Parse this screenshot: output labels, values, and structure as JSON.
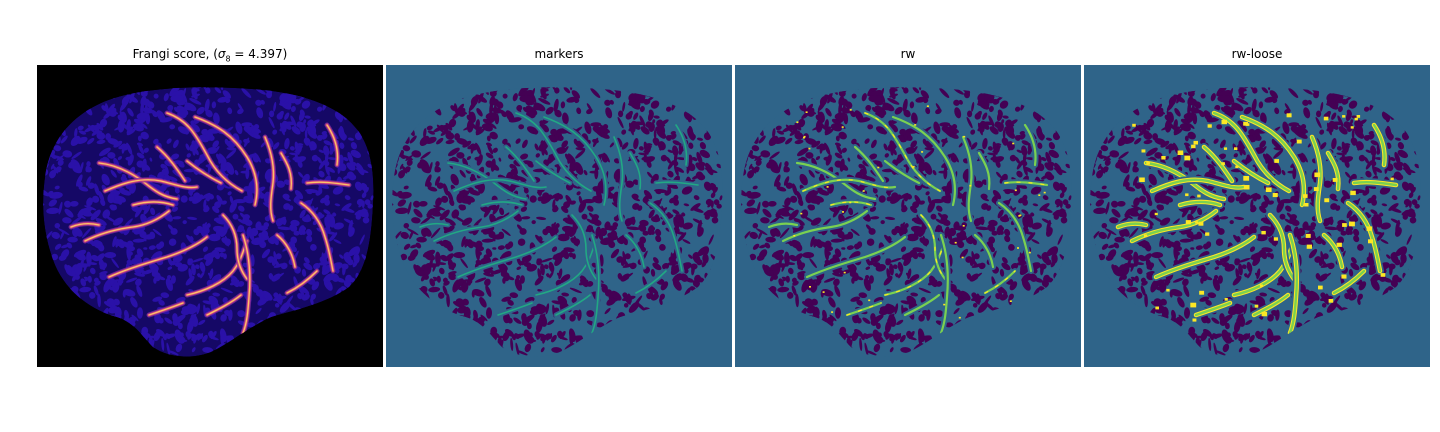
{
  "figure": {
    "panels": [
      {
        "title_prefix": "Frangi score, (",
        "title_sigma": "σ",
        "title_sub": "8",
        "title_suffix": " = 4.397)",
        "colormap": "magma",
        "colors": {
          "background": "#000000",
          "texture": "#2a11a8",
          "texture_dark": "#150866",
          "vessel_low": "#7d2b9c",
          "vessel_mid": "#d0457a",
          "vessel_high": "#fbc26a"
        }
      },
      {
        "title": "markers",
        "colormap": "viridis",
        "colors": {
          "background": "#2f6489",
          "texture": "#440154",
          "vessel": "#22a884"
        }
      },
      {
        "title": "rw",
        "colormap": "viridis",
        "colors": {
          "background": "#2f6489",
          "texture": "#440154",
          "vessel": "#7ad151",
          "vessel_hi": "#fde725"
        }
      },
      {
        "title": "rw-loose",
        "colormap": "viridis",
        "colors": {
          "background": "#2f6489",
          "texture": "#440154",
          "vessel": "#7ad151",
          "vessel_hi": "#fde725"
        }
      }
    ]
  }
}
